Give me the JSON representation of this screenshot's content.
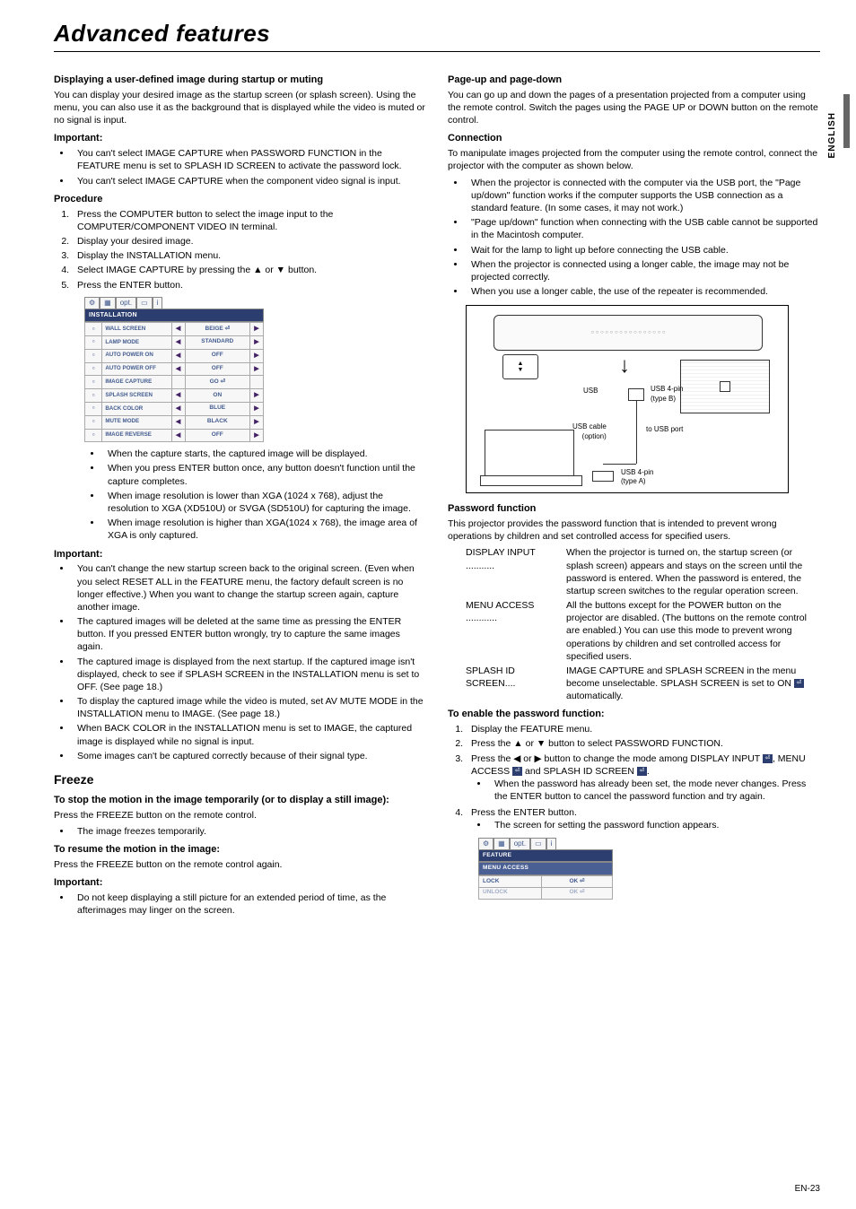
{
  "page": {
    "title": "Advanced features",
    "footer": "EN-23",
    "side_lang": "ENGLISH"
  },
  "left": {
    "h1": "Displaying a user-defined image during startup or muting",
    "p1": "You can display your desired image as the startup screen (or splash screen). Using the menu, you can also use it as the background that is displayed while the video is muted or no signal is input.",
    "important1": "Important:",
    "imp1_b1": "You can't select IMAGE CAPTURE when PASSWORD FUNCTION in the FEATURE menu is set to SPLASH ID SCREEN to activate the password lock.",
    "imp1_b2": "You can't select IMAGE CAPTURE when the component video signal is input.",
    "procedure": "Procedure",
    "proc1": "Press the COMPUTER button to select the image input to the COMPUTER/COMPONENT VIDEO IN terminal.",
    "proc2": "Display your desired image.",
    "proc3": "Display the INSTALLATION menu.",
    "proc4a": "Select IMAGE CAPTURE by pressing the ",
    "proc4b": " or ",
    "proc4c": " button.",
    "proc5": "Press the ENTER button.",
    "menu": {
      "header": "INSTALLATION",
      "tab_labels": [
        "⚙",
        "▦",
        "opt.",
        "▭",
        "i"
      ],
      "rows": [
        {
          "label": "WALL SCREEN",
          "val": "BEIGE ⏎"
        },
        {
          "label": "LAMP MODE",
          "val": "STANDARD"
        },
        {
          "label": "AUTO POWER ON",
          "val": "OFF"
        },
        {
          "label": "AUTO POWER OFF",
          "val": "OFF"
        },
        {
          "label": "IMAGE CAPTURE",
          "val": "GO ⏎",
          "noarrows": true
        },
        {
          "label": "SPLASH SCREEN",
          "val": "ON"
        },
        {
          "label": "BACK COLOR",
          "val": "BLUE"
        },
        {
          "label": "MUTE MODE",
          "val": "BLACK"
        },
        {
          "label": "IMAGE REVERSE",
          "val": "OFF"
        }
      ]
    },
    "sub_b1": "When the capture starts, the captured image will be displayed.",
    "sub_b2": "When you press ENTER button once, any button doesn't function until the capture completes.",
    "sub_b3": "When image resolution is lower than XGA (1024 x 768), adjust the resolution to XGA (XD510U) or SVGA (SD510U) for capturing the image.",
    "sub_b4": "When image resolution is higher than XGA(1024 x 768), the image area of XGA is only captured.",
    "important2": "Important:",
    "imp2_b1": "You can't change the new startup screen back to the original screen. (Even when you select RESET ALL in the FEATURE menu, the factory default screen is no longer effective.) When you want to change the startup screen again, capture another image.",
    "imp2_b2": "The captured images will be deleted at the same time as pressing the ENTER button. If you pressed ENTER button wrongly, try to capture the same images again.",
    "imp2_b3": "The captured image is displayed from the next startup. If the captured image isn't displayed, check to see if SPLASH SCREEN in the INSTALLATION menu is set to OFF. (See page 18.)",
    "imp2_b4": "To display the captured image while the video is muted, set AV MUTE MODE in the INSTALLATION menu to IMAGE. (See page 18.)",
    "imp2_b5": "When BACK COLOR in the INSTALLATION menu is set to IMAGE, the captured image is displayed while no signal is input.",
    "imp2_b6": "Some images can't be captured correctly because of their signal type.",
    "freeze_h": "Freeze",
    "freeze_sub1": "To stop the motion in the image temporarily (or to display a still image):",
    "freeze_p1": "Press the FREEZE button on the remote control.",
    "freeze_b1": "The image freezes temporarily.",
    "freeze_sub2": "To resume the motion in the image:",
    "freeze_p2": "Press the FREEZE button on the remote control again.",
    "important3": "Important:",
    "imp3_b1": "Do not keep displaying a still picture for an extended period of time, as the afterimages may linger on the screen."
  },
  "right": {
    "h1": "Page-up and page-down",
    "p1": "You can go up and down the pages of a presentation projected from a computer using the remote control. Switch the pages using the PAGE UP or DOWN button on the remote control.",
    "h2": "Connection",
    "p2": "To manipulate images projected from the computer using the remote control, connect the projector with the computer as shown below.",
    "conn_b1": "When the projector is connected with the computer via the USB port, the \"Page up/down\" function works if the computer supports the USB connection as a standard feature. (In some cases, it may not work.)",
    "conn_b2": "\"Page up/down\" function when connecting with the USB cable cannot be supported in the Macintosh computer.",
    "conn_b3": "Wait for the lamp to light up before connecting the USB cable.",
    "conn_b4": "When the projector is connected using a longer cable, the image may not be projected correctly.",
    "conn_b5": "When you use a longer cable, the use of the repeater is recommended.",
    "diagram": {
      "usb": "USB",
      "usb4b": "USB 4-pin\n(type B)",
      "usbcable": "USB cable\n(option)",
      "tousb": "to USB port",
      "usb4a": "USB 4-pin\n(type A)"
    },
    "pw_h": "Password function",
    "pw_p": "This projector provides the password function that is intended to prevent wrong operations by children and set controlled access for specified users.",
    "pw_dl1_t": "DISPLAY INPUT",
    "pw_dl1_d": "When the projector is turned on, the startup screen (or splash screen) appears and stays on the screen until the password is entered. When the password is entered, the startup screen switches to the regular operation screen.",
    "pw_dl2_t": "MENU ACCESS",
    "pw_dl2_d": "All the buttons except for the POWER button on the projector are disabled. (The buttons on the remote control are enabled.) You can use this mode to prevent wrong operations by  children and set controlled access for specified users.",
    "pw_dl3_t": "SPLASH ID SCREEN",
    "pw_dl3_d1": "IMAGE CAPTURE and SPLASH SCREEN in the menu become unselectable. SPLASH SCREEN is set to ON ",
    "pw_dl3_d2": " automatically.",
    "enable_h": "To enable the password function:",
    "en1": "Display the FEATURE menu.",
    "en2a": "Press the ",
    "en2b": " or ",
    "en2c": " button to select PASSWORD FUNCTION.",
    "en3a": "Press the ",
    "en3b": " or ",
    "en3c": " button to change the mode among DISPLAY INPUT ",
    "en3d": ", MENU ACCESS ",
    "en3e": " and SPLASH ID SCREEN ",
    "en3f": ".",
    "en3_sub": "When the password has already been set, the mode never changes. Press the ENTER button to cancel the password function and try again.",
    "en4": "Press the ENTER button.",
    "en4_sub": "The screen for setting the password function appears.",
    "small_menu": {
      "header1": "FEATURE",
      "header2": "MENU ACCESS",
      "rows": [
        {
          "label": "LOCK",
          "val": "OK ⏎"
        },
        {
          "label": "UNLOCK",
          "val": "OK ⏎",
          "dim": true
        }
      ]
    }
  },
  "glyphs": {
    "tri_up": "▲",
    "tri_down": "▼",
    "tri_left": "◀",
    "tri_right": "▶"
  }
}
